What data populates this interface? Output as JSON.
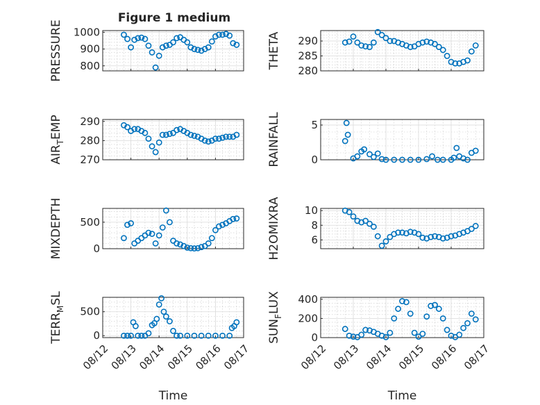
{
  "figure_title": "Figure 1 medium",
  "colors": {
    "marker": "#0072BD",
    "axes": "#262626",
    "grid": "#d9d9d9"
  },
  "chart_data": [
    {
      "type": "scatter",
      "ylabel": "PRESSURE",
      "ylim": [
        770,
        1010
      ],
      "yticks": [
        800,
        900,
        1000
      ],
      "yticklabels": [
        "800",
        "900",
        "1000"
      ],
      "xlim": [
        "08/12",
        "08/17"
      ],
      "xticklabels": [],
      "xlabel": "",
      "grid": "on",
      "series": [
        {
          "x": [
            "08/12 18:00",
            "08/12 21:00",
            "08/13 00:00",
            "08/13 03:00",
            "08/13 06:00",
            "08/13 09:00",
            "08/13 12:00",
            "08/13 15:00",
            "08/13 18:00",
            "08/13 21:00",
            "08/14 00:00",
            "08/14 03:00",
            "08/14 06:00",
            "08/14 09:00",
            "08/14 12:00",
            "08/14 15:00",
            "08/14 18:00",
            "08/14 21:00",
            "08/15 00:00",
            "08/15 03:00",
            "08/15 06:00",
            "08/15 09:00",
            "08/15 12:00",
            "08/15 15:00",
            "08/15 18:00",
            "08/15 21:00",
            "08/16 00:00",
            "08/16 03:00",
            "08/16 06:00",
            "08/16 09:00",
            "08/16 12:00",
            "08/16 15:00",
            "08/16 18:00"
          ],
          "y": [
            985,
            960,
            910,
            955,
            965,
            968,
            960,
            920,
            880,
            790,
            860,
            910,
            920,
            925,
            940,
            965,
            970,
            955,
            940,
            910,
            900,
            895,
            890,
            900,
            910,
            945,
            975,
            985,
            985,
            990,
            980,
            935,
            925
          ]
        }
      ]
    },
    {
      "type": "scatter",
      "ylabel": "THETA",
      "ylim": [
        280,
        293.5
      ],
      "yticks": [
        280,
        285,
        290
      ],
      "yticklabels": [
        "280",
        "285",
        "290"
      ],
      "xlim": [
        "08/12",
        "08/17"
      ],
      "xticklabels": [],
      "xlabel": "",
      "grid": "on",
      "series": [
        {
          "x": [
            "08/12 18:00",
            "08/12 21:00",
            "08/13 00:00",
            "08/13 03:00",
            "08/13 06:00",
            "08/13 09:00",
            "08/13 12:00",
            "08/13 15:00",
            "08/13 18:00",
            "08/13 21:00",
            "08/14 00:00",
            "08/14 03:00",
            "08/14 06:00",
            "08/14 09:00",
            "08/14 12:00",
            "08/14 15:00",
            "08/14 18:00",
            "08/14 21:00",
            "08/15 00:00",
            "08/15 03:00",
            "08/15 06:00",
            "08/15 09:00",
            "08/15 12:00",
            "08/15 15:00",
            "08/15 18:00",
            "08/15 21:00",
            "08/16 00:00",
            "08/16 03:00",
            "08/16 06:00",
            "08/16 09:00",
            "08/16 12:00",
            "08/16 15:00",
            "08/16 18:00"
          ],
          "y": [
            289.5,
            289.8,
            291.5,
            289.5,
            288.5,
            288.2,
            288,
            289.5,
            293,
            292,
            291,
            290,
            290,
            289.5,
            289,
            288.5,
            288,
            288.2,
            289,
            289.5,
            289.8,
            289.5,
            289,
            288,
            287,
            285,
            283,
            282.5,
            282.5,
            283,
            283.5,
            286.5,
            288.5
          ]
        }
      ]
    },
    {
      "type": "scatter",
      "ylabel": "AIR_TEMP",
      "ylim": [
        270,
        291
      ],
      "yticks": [
        270,
        280,
        290
      ],
      "yticklabels": [
        "270",
        "280",
        "290"
      ],
      "xlim": [
        "08/12",
        "08/17"
      ],
      "xticklabels": [],
      "xlabel": "",
      "grid": "on",
      "series": [
        {
          "x": [
            "08/12 18:00",
            "08/12 21:00",
            "08/13 00:00",
            "08/13 03:00",
            "08/13 06:00",
            "08/13 09:00",
            "08/13 12:00",
            "08/13 15:00",
            "08/13 18:00",
            "08/13 21:00",
            "08/14 00:00",
            "08/14 03:00",
            "08/14 06:00",
            "08/14 09:00",
            "08/14 12:00",
            "08/14 15:00",
            "08/14 18:00",
            "08/14 21:00",
            "08/15 00:00",
            "08/15 03:00",
            "08/15 06:00",
            "08/15 09:00",
            "08/15 12:00",
            "08/15 15:00",
            "08/15 18:00",
            "08/15 21:00",
            "08/16 00:00",
            "08/16 03:00",
            "08/16 06:00",
            "08/16 09:00",
            "08/16 12:00",
            "08/16 15:00",
            "08/16 18:00"
          ],
          "y": [
            288,
            287,
            285,
            286,
            286,
            285,
            284,
            281,
            277,
            274,
            279,
            283,
            283,
            283.5,
            284,
            285.5,
            286,
            285,
            284,
            283,
            282.5,
            282,
            281,
            280,
            279.5,
            280,
            281,
            281,
            281.5,
            282,
            282,
            282,
            283
          ]
        }
      ]
    },
    {
      "type": "scatter",
      "ylabel": "RAINFALL",
      "ylim": [
        0,
        5.8
      ],
      "yticks": [
        0,
        5
      ],
      "yticklabels": [
        "0",
        "5"
      ],
      "xlim": [
        "08/12",
        "08/17"
      ],
      "xticklabels": [],
      "xlabel": "",
      "grid": "on",
      "series": [
        {
          "x": [
            "08/12 18:00",
            "08/12 19:00",
            "08/12 20:00",
            "08/13 00:00",
            "08/13 03:00",
            "08/13 06:00",
            "08/13 08:00",
            "08/13 12:00",
            "08/13 15:00",
            "08/13 18:00",
            "08/13 21:00",
            "08/14 00:00",
            "08/14 06:00",
            "08/14 12:00",
            "08/14 18:00",
            "08/15 00:00",
            "08/15 06:00",
            "08/15 10:00",
            "08/15 14:00",
            "08/15 18:00",
            "08/16 00:00",
            "08/16 02:00",
            "08/16 04:00",
            "08/16 06:00",
            "08/16 09:00",
            "08/16 12:00",
            "08/16 15:00",
            "08/16 18:00"
          ],
          "y": [
            2.7,
            5.3,
            3.6,
            0.2,
            0.5,
            1.2,
            1.5,
            0.8,
            0.4,
            0.9,
            0.1,
            0,
            0,
            0,
            0,
            0,
            0.1,
            0.5,
            0,
            0,
            0,
            0.3,
            1.7,
            0.5,
            0.2,
            0,
            1,
            1.3
          ]
        }
      ]
    },
    {
      "type": "scatter",
      "ylabel": "MIXDEPTH",
      "ylim": [
        0,
        760
      ],
      "yticks": [
        0,
        500
      ],
      "yticklabels": [
        "0",
        "500"
      ],
      "xlim": [
        "08/12",
        "08/17"
      ],
      "xticklabels": [],
      "xlabel": "",
      "grid": "on",
      "series": [
        {
          "x": [
            "08/12 18:00",
            "08/12 21:00",
            "08/13 00:00",
            "08/13 03:00",
            "08/13 06:00",
            "08/13 09:00",
            "08/13 12:00",
            "08/13 15:00",
            "08/13 18:00",
            "08/13 21:00",
            "08/14 00:00",
            "08/14 03:00",
            "08/14 06:00",
            "08/14 09:00",
            "08/14 12:00",
            "08/14 15:00",
            "08/14 18:00",
            "08/14 21:00",
            "08/15 00:00",
            "08/15 03:00",
            "08/15 06:00",
            "08/15 09:00",
            "08/15 12:00",
            "08/15 15:00",
            "08/15 18:00",
            "08/15 21:00",
            "08/16 00:00",
            "08/16 03:00",
            "08/16 06:00",
            "08/16 09:00",
            "08/16 12:00",
            "08/16 15:00",
            "08/16 18:00"
          ],
          "y": [
            200,
            450,
            480,
            100,
            150,
            200,
            250,
            300,
            280,
            100,
            250,
            400,
            720,
            500,
            150,
            100,
            80,
            50,
            20,
            10,
            5,
            10,
            30,
            50,
            100,
            200,
            350,
            420,
            450,
            480,
            520,
            560,
            570
          ]
        }
      ]
    },
    {
      "type": "scatter",
      "ylabel": "H2OMIXRA",
      "ylim": [
        4.8,
        10.3
      ],
      "yticks": [
        6,
        8,
        10
      ],
      "yticklabels": [
        "6",
        "8",
        "10"
      ],
      "xlim": [
        "08/12",
        "08/17"
      ],
      "xticklabels": [],
      "xlabel": "",
      "grid": "on",
      "series": [
        {
          "x": [
            "08/12 18:00",
            "08/12 21:00",
            "08/13 00:00",
            "08/13 03:00",
            "08/13 06:00",
            "08/13 09:00",
            "08/13 12:00",
            "08/13 15:00",
            "08/13 18:00",
            "08/13 21:00",
            "08/14 00:00",
            "08/14 03:00",
            "08/14 06:00",
            "08/14 09:00",
            "08/14 12:00",
            "08/14 15:00",
            "08/14 18:00",
            "08/14 21:00",
            "08/15 00:00",
            "08/15 03:00",
            "08/15 06:00",
            "08/15 09:00",
            "08/15 12:00",
            "08/15 15:00",
            "08/15 18:00",
            "08/15 21:00",
            "08/16 00:00",
            "08/16 03:00",
            "08/16 06:00",
            "08/16 09:00",
            "08/16 12:00",
            "08/16 15:00",
            "08/16 18:00"
          ],
          "y": [
            10,
            9.8,
            9.2,
            8.6,
            8.4,
            8.6,
            8.2,
            7.8,
            6.5,
            5.2,
            5.8,
            6.4,
            6.8,
            7,
            7,
            6.9,
            7.1,
            7,
            6.8,
            6.3,
            6.2,
            6.4,
            6.5,
            6.4,
            6.2,
            6.3,
            6.5,
            6.6,
            6.8,
            7,
            7.2,
            7.5,
            7.9
          ]
        }
      ]
    },
    {
      "type": "scatter",
      "ylabel": "TERR_MSL",
      "ylim": [
        -40,
        800
      ],
      "yticks": [
        0,
        500
      ],
      "yticklabels": [
        "0",
        "500"
      ],
      "xlim": [
        "08/12",
        "08/17"
      ],
      "xticklabels": [
        "08/12",
        "08/13",
        "08/14",
        "08/15",
        "08/16",
        "08/17"
      ],
      "xlabel": "Time",
      "grid": "on",
      "series": [
        {
          "x": [
            "08/12 18:00",
            "08/12 21:00",
            "08/13 00:00",
            "08/13 02:00",
            "08/13 04:00",
            "08/13 06:00",
            "08/13 09:00",
            "08/13 12:00",
            "08/13 15:00",
            "08/13 18:00",
            "08/13 20:00",
            "08/13 22:00",
            "08/14 00:00",
            "08/14 02:00",
            "08/14 04:00",
            "08/14 06:00",
            "08/14 09:00",
            "08/14 12:00",
            "08/14 15:00",
            "08/14 18:00",
            "08/15 00:00",
            "08/15 06:00",
            "08/15 12:00",
            "08/15 18:00",
            "08/16 00:00",
            "08/16 06:00",
            "08/16 12:00",
            "08/16 14:00",
            "08/16 16:00",
            "08/16 18:00"
          ],
          "y": [
            0,
            0,
            0,
            280,
            200,
            0,
            0,
            0,
            50,
            220,
            260,
            350,
            650,
            780,
            500,
            400,
            300,
            100,
            0,
            0,
            0,
            0,
            0,
            0,
            0,
            0,
            0,
            160,
            200,
            280
          ]
        }
      ]
    },
    {
      "type": "scatter",
      "ylabel": "SUN_FLUX",
      "ylim": [
        0,
        420
      ],
      "yticks": [
        0,
        200,
        400
      ],
      "yticklabels": [
        "0",
        "200",
        "400"
      ],
      "xlim": [
        "08/12",
        "08/17"
      ],
      "xticklabels": [
        "08/12",
        "08/13",
        "08/14",
        "08/15",
        "08/16",
        "08/17"
      ],
      "xlabel": "Time",
      "grid": "on",
      "series": [
        {
          "x": [
            "08/12 18:00",
            "08/12 21:00",
            "08/13 00:00",
            "08/13 03:00",
            "08/13 06:00",
            "08/13 09:00",
            "08/13 12:00",
            "08/13 15:00",
            "08/13 18:00",
            "08/13 21:00",
            "08/14 00:00",
            "08/14 03:00",
            "08/14 06:00",
            "08/14 09:00",
            "08/14 12:00",
            "08/14 15:00",
            "08/14 18:00",
            "08/14 21:00",
            "08/15 00:00",
            "08/15 03:00",
            "08/15 06:00",
            "08/15 09:00",
            "08/15 12:00",
            "08/15 15:00",
            "08/15 18:00",
            "08/15 21:00",
            "08/16 00:00",
            "08/16 03:00",
            "08/16 06:00",
            "08/16 09:00",
            "08/16 12:00",
            "08/16 15:00",
            "08/16 18:00"
          ],
          "y": [
            90,
            20,
            10,
            5,
            30,
            80,
            75,
            60,
            40,
            20,
            5,
            50,
            200,
            300,
            380,
            370,
            250,
            50,
            10,
            40,
            220,
            330,
            340,
            300,
            200,
            80,
            20,
            5,
            30,
            100,
            150,
            250,
            190
          ]
        }
      ]
    }
  ]
}
